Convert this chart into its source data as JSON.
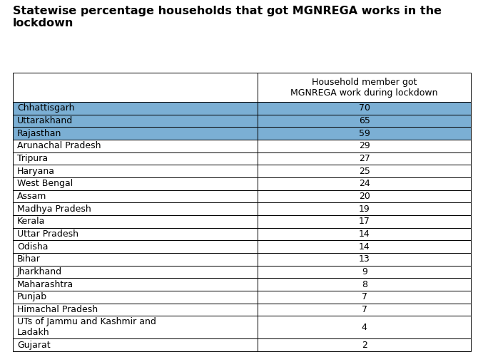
{
  "title": "Statewise percentage households that got MGNREGA works in the\nlockdown",
  "col_header": "Household member got\nMGNREGA work during lockdown",
  "states": [
    "Chhattisgarh",
    "Uttarakhand",
    "Rajasthan",
    "Arunachal Pradesh",
    "Tripura",
    "Haryana",
    "West Bengal",
    "Assam",
    "Madhya Pradesh",
    "Kerala",
    "Uttar Pradesh",
    "Odisha",
    "Bihar",
    "Jharkhand",
    "Maharashtra",
    "Punjab",
    "Himachal Pradesh",
    "UTs of Jammu and Kashmir and\nLadakh",
    "Gujarat"
  ],
  "values": [
    70,
    65,
    59,
    29,
    27,
    25,
    24,
    20,
    19,
    17,
    14,
    14,
    13,
    9,
    8,
    7,
    7,
    4,
    2
  ],
  "highlighted_rows": [
    0,
    1,
    2
  ],
  "highlight_color": "#7BAFD4",
  "normal_bg": "#FFFFFF",
  "header_bg": "#FFFFFF",
  "text_color": "#000000",
  "border_color": "#000000",
  "title_color": "#000000",
  "background_color": "#FFFFFF",
  "font_size": 9.0,
  "title_font_size": 11.5
}
